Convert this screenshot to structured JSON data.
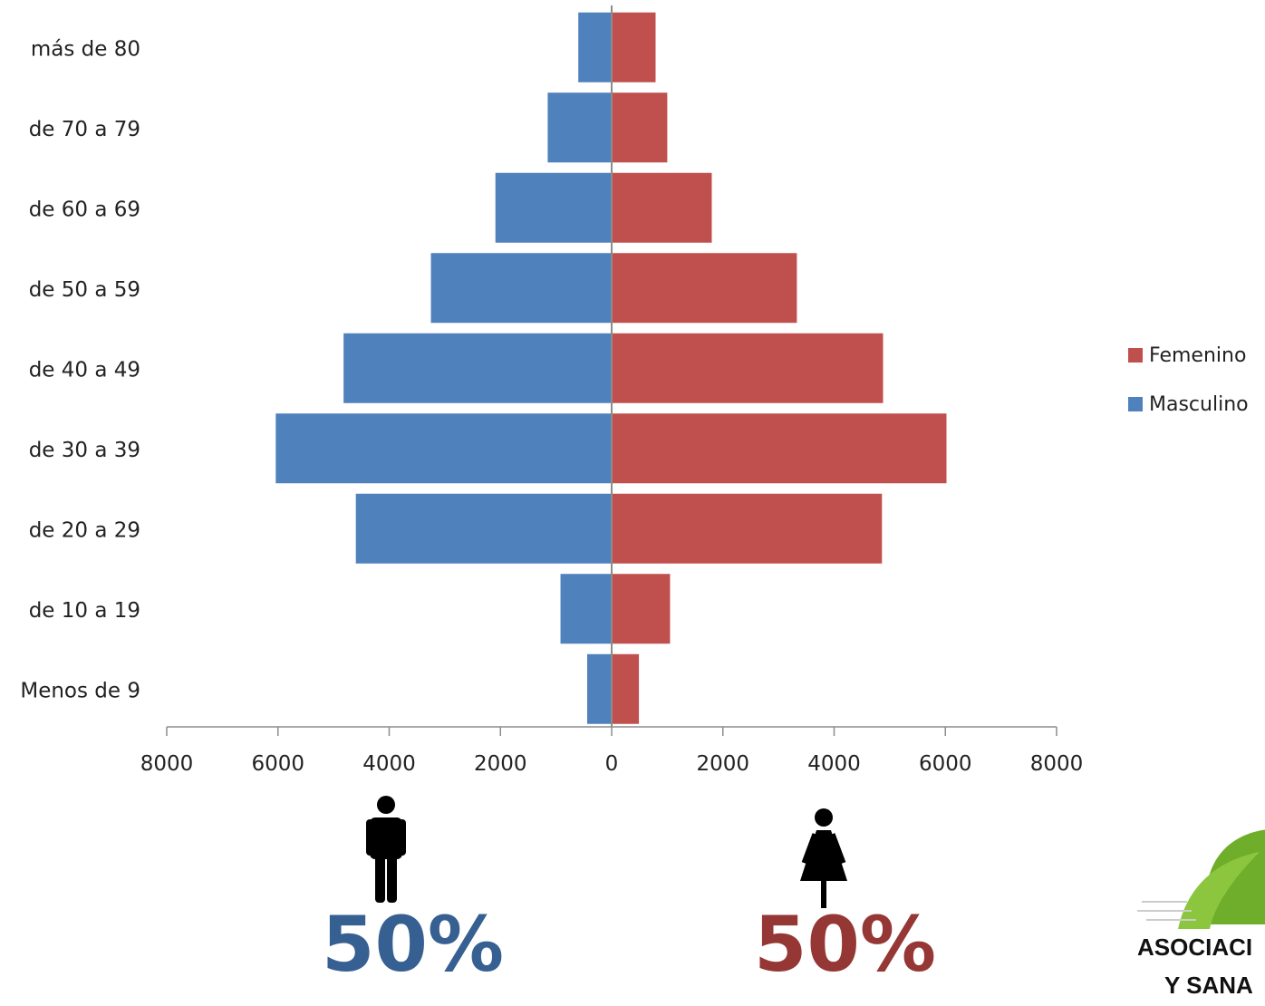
{
  "chart_data": {
    "type": "bar",
    "orientation": "horizontal",
    "categories": [
      "Menos de 9",
      "de 10 a 19",
      "de 20 a 29",
      "de 30 a 39",
      "de 40 a 49",
      "de 50 a 59",
      "de 60 a 69",
      "de 70 a 79",
      "más de 80"
    ],
    "series": [
      {
        "name": "Femenino",
        "values": [
          490,
          1050,
          4860,
          6020,
          4880,
          3330,
          1800,
          1000,
          790
        ],
        "color": "#c0504d"
      },
      {
        "name": "Masculino",
        "values": [
          440,
          920,
          4600,
          6040,
          4820,
          3250,
          2090,
          1150,
          600
        ],
        "color": "#4f81bd"
      }
    ],
    "xlim": [
      -8000,
      8000
    ],
    "x_ticks": [
      "8000",
      "6000",
      "4000",
      "2000",
      "0",
      "2000",
      "4000",
      "6000",
      "8000"
    ],
    "legend_position": "right",
    "grid": false
  },
  "summary": {
    "male": {
      "percent": "50%",
      "icon": "male-person-icon",
      "color": "#376092"
    },
    "female": {
      "percent": "50%",
      "icon": "female-person-icon",
      "color": "#953735"
    }
  },
  "logo": {
    "line1": "ASOCIACI",
    "line2": "Y SANA"
  }
}
